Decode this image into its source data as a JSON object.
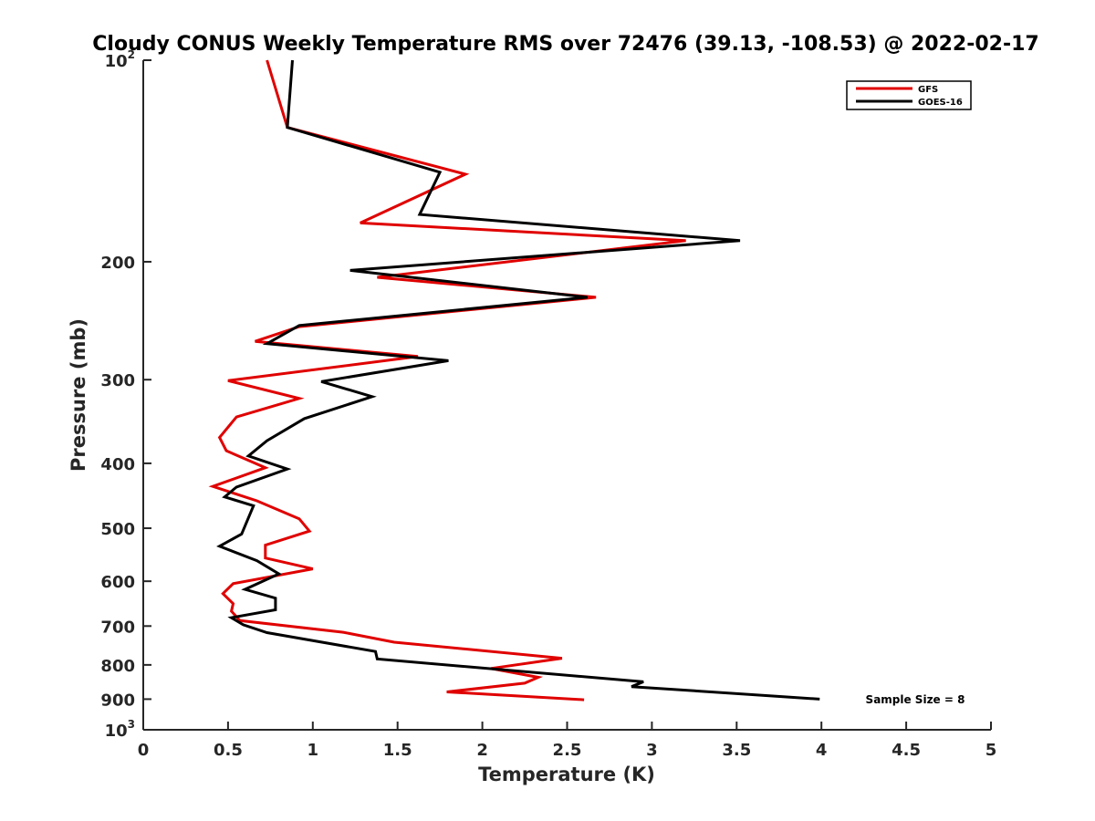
{
  "chart_data": {
    "type": "line",
    "title": "Cloudy CONUS Weekly Temperature RMS over 72476 (39.13, -108.53) @ 2022-02-17",
    "xlabel": "Temperature (K)",
    "ylabel": "Pressure (mb)",
    "xlim": [
      0,
      5
    ],
    "ylim": [
      100,
      1000
    ],
    "y_scale": "log",
    "y_reversed": true,
    "grid": false,
    "legend_position": "top-right",
    "x_ticks": [
      "0",
      "0.5",
      "1",
      "1.5",
      "2",
      "2.5",
      "3",
      "3.5",
      "4",
      "4.5",
      "5"
    ],
    "y_ticks": [
      {
        "value": 100,
        "base": "10",
        "exp": "2"
      },
      {
        "value": 200,
        "label": "200"
      },
      {
        "value": 300,
        "label": "300"
      },
      {
        "value": 400,
        "label": "400"
      },
      {
        "value": 500,
        "label": "500"
      },
      {
        "value": 600,
        "label": "600"
      },
      {
        "value": 700,
        "label": "700"
      },
      {
        "value": 800,
        "label": "800"
      },
      {
        "value": 900,
        "label": "900"
      },
      {
        "value": 1000,
        "base": "10",
        "exp": "3"
      }
    ],
    "series": [
      {
        "name": "GFS",
        "color": "#e00000",
        "x": [
          0.73,
          0.85,
          1.9,
          1.28,
          3.2,
          1.38,
          2.67,
          0.92,
          0.66,
          1.62,
          0.5,
          0.92,
          0.55,
          0.45,
          0.49,
          0.72,
          0.41,
          0.67,
          0.92,
          0.98,
          0.72,
          0.72,
          1.0,
          0.53,
          0.47,
          0.53,
          0.52,
          0.57,
          1.18,
          1.48,
          2.47,
          2.05,
          2.33,
          2.25,
          1.79,
          2.6
        ],
        "y": [
          100,
          126,
          148,
          175,
          186,
          211,
          226,
          250,
          263,
          277,
          301,
          320,
          341,
          366,
          383,
          406,
          433,
          455,
          484,
          505,
          530,
          554,
          575,
          605,
          626,
          648,
          665,
          687,
          715,
          740,
          782,
          810,
          835,
          852,
          878,
          902
        ]
      },
      {
        "name": "GOES-16",
        "color": "#000000",
        "x": [
          0.88,
          0.85,
          1.75,
          1.63,
          3.52,
          1.22,
          2.62,
          0.92,
          0.73,
          1.8,
          1.05,
          1.35,
          0.95,
          0.73,
          0.62,
          0.85,
          0.55,
          0.48,
          0.65,
          0.58,
          0.45,
          0.67,
          0.8,
          0.6,
          0.78,
          0.78,
          0.52,
          0.59,
          0.73,
          1.37,
          1.38,
          2.95,
          2.88,
          3.99
        ],
        "y": [
          100,
          126,
          147,
          170,
          186,
          206,
          226,
          249,
          265,
          281,
          302,
          318,
          343,
          370,
          390,
          408,
          434,
          449,
          463,
          510,
          532,
          559,
          585,
          617,
          636,
          662,
          680,
          697,
          716,
          764,
          784,
          848,
          862,
          900
        ]
      }
    ],
    "annotation": "Sample Size = 8"
  }
}
